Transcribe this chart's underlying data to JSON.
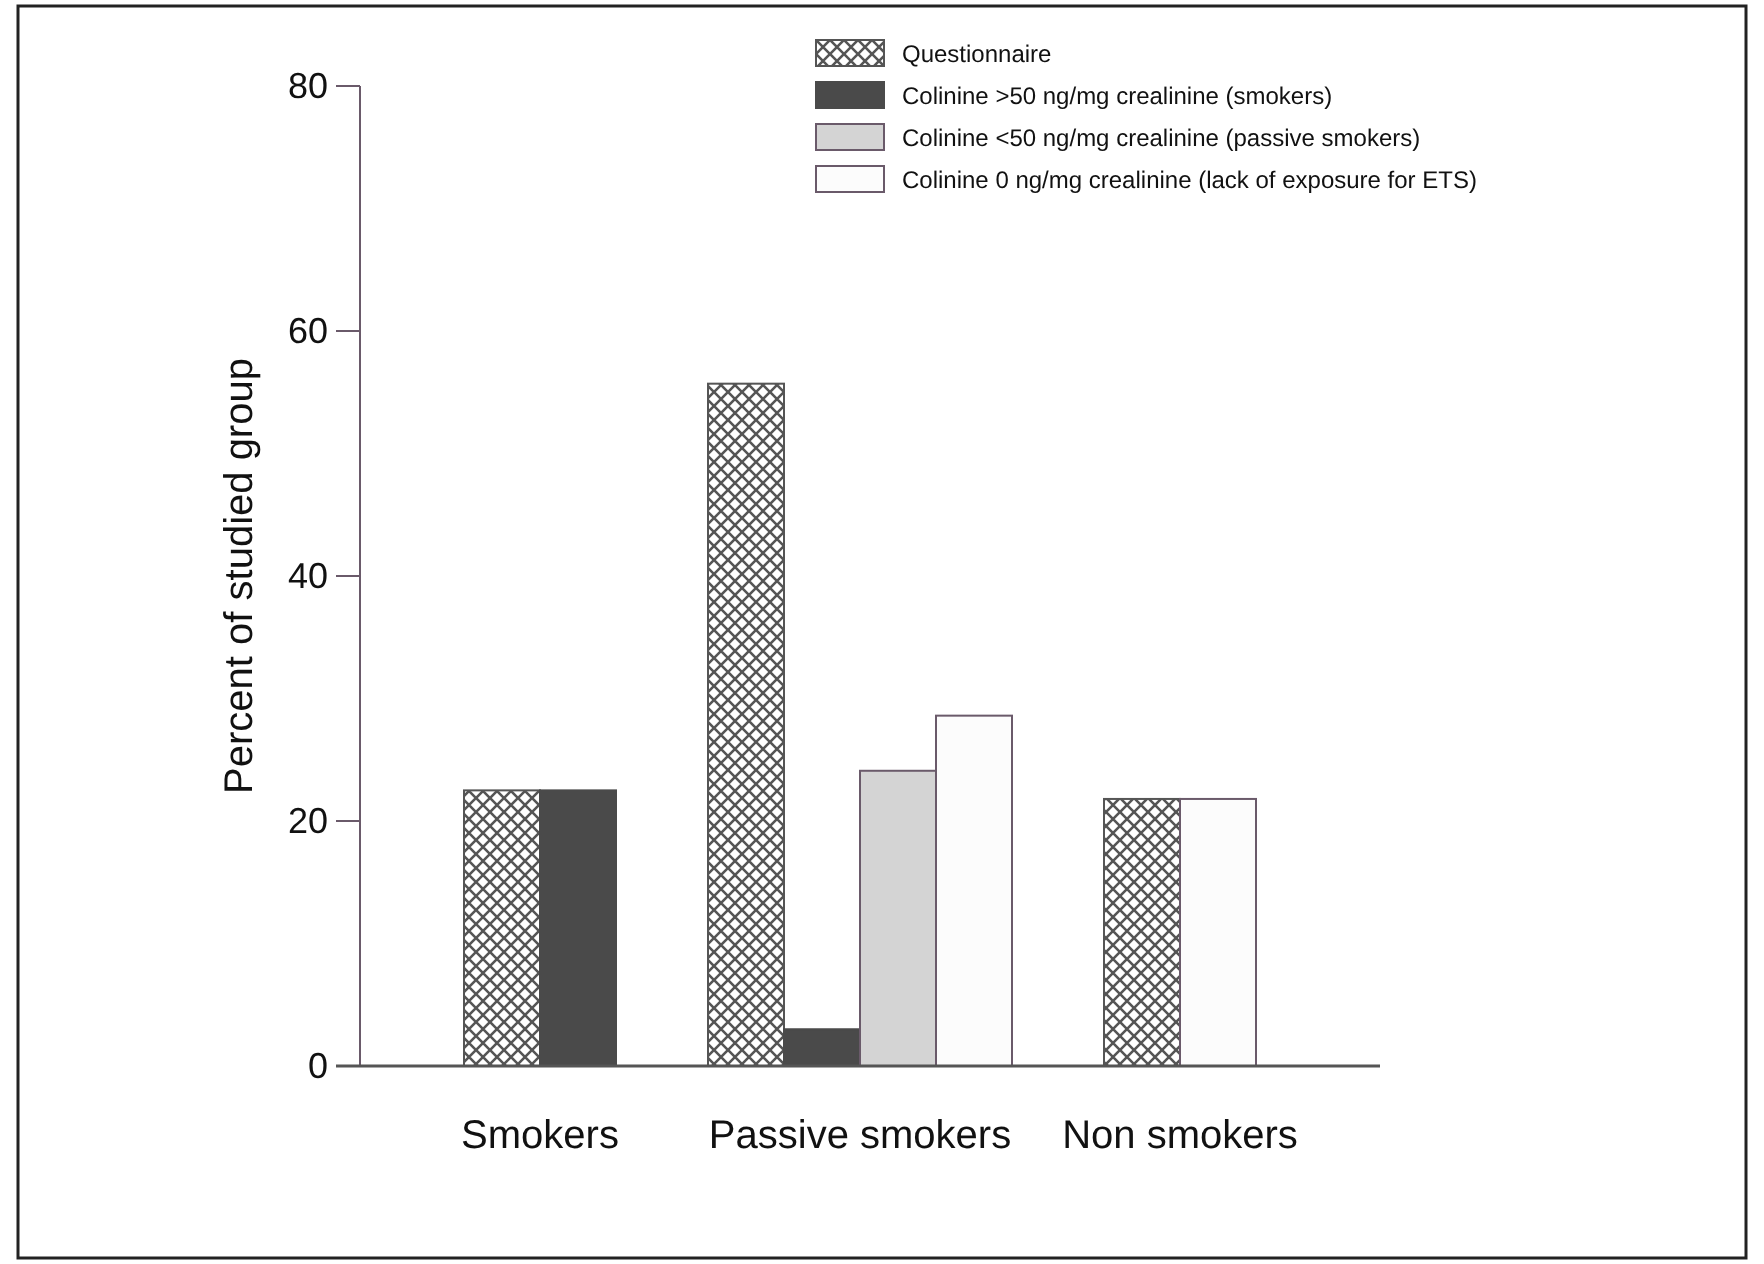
{
  "chart_data": {
    "type": "bar",
    "ylabel": "Percent of studied group",
    "categories": [
      "Smokers",
      "Passive smokers",
      "Non smokers"
    ],
    "series": [
      {
        "name": "Questionnaire",
        "color": "#555555",
        "values": [
          22.5,
          55.7,
          21.8
        ]
      },
      {
        "name": "Colinine >50 ng/mg crealinine (smokers)",
        "color": "#4a4a4a",
        "values": [
          22.5,
          3.0,
          null
        ]
      },
      {
        "name": "Colinine <50 ng/mg crealinine (passive smokers)",
        "color": "#d4d4d4",
        "values": [
          null,
          24.1,
          null
        ]
      },
      {
        "name": "Colinine 0 ng/mg crealinine (lack of exposure for ETS)",
        "color": "#fcfcfc",
        "values": [
          null,
          28.6,
          21.8
        ]
      }
    ],
    "ylim": [
      0,
      80
    ],
    "yticks": [
      0,
      20,
      40,
      60,
      80
    ],
    "legend": "top right"
  }
}
